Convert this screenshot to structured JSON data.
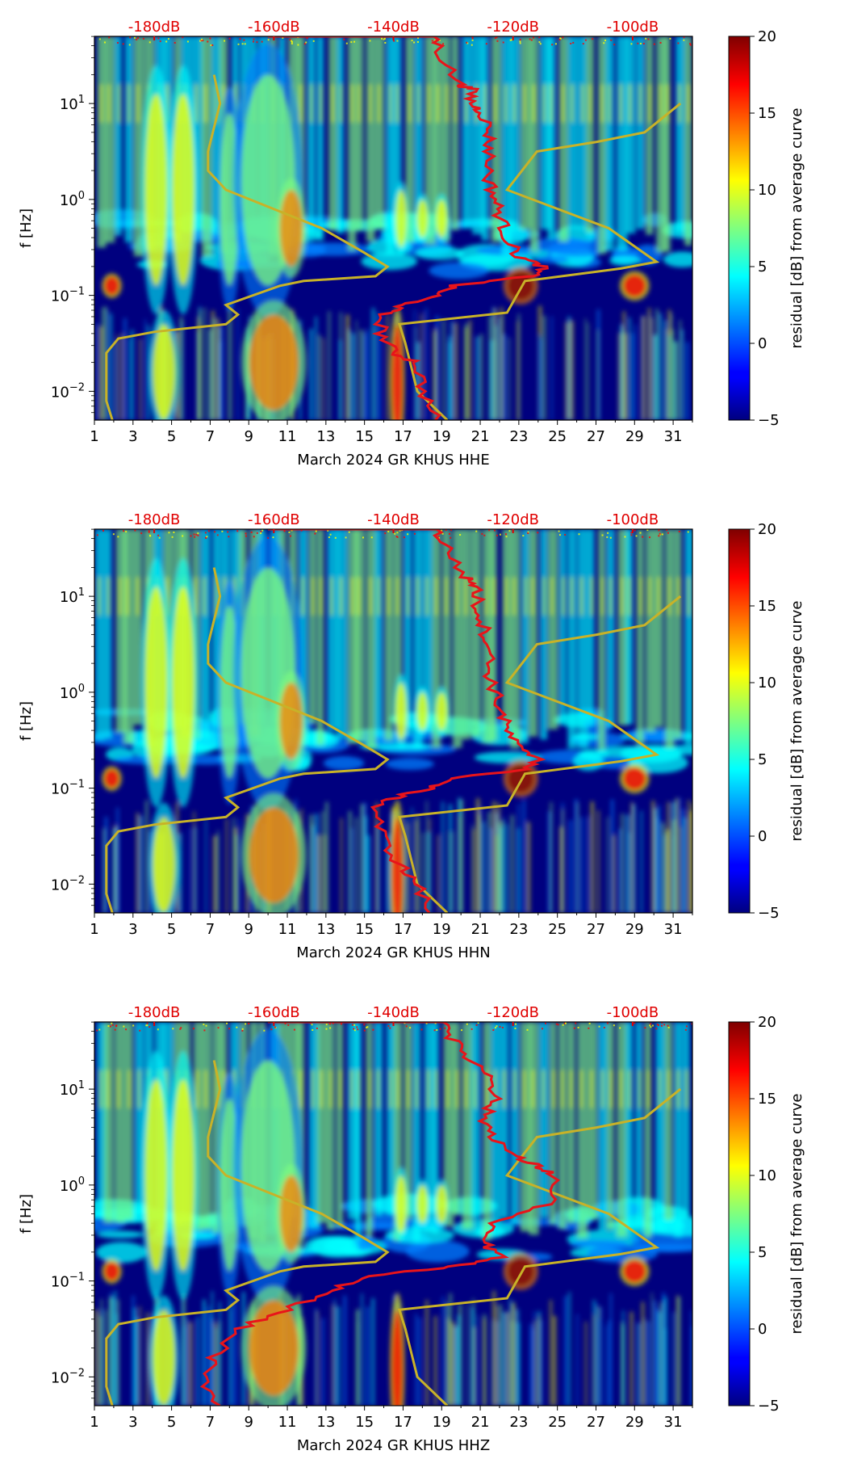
{
  "colors": {
    "noise_curve": "#e8141a",
    "model_curve": "#c8b228",
    "db_label": "#e00000",
    "background_field": "#00007f"
  },
  "chart_data": [
    {
      "type": "heatmap",
      "channel": "HHE",
      "xlabel": "March 2024 GR KHUS  HHE",
      "ylabel": "f [Hz]",
      "colorbar_label": "residual [dB] from average curve",
      "colorbar_ticks": [
        "20",
        "15",
        "10",
        "5",
        "0",
        "−5"
      ],
      "colorbar_range": [
        -5,
        20
      ],
      "x_ticks": [
        "1",
        "3",
        "5",
        "7",
        "9",
        "11",
        "13",
        "15",
        "17",
        "19",
        "21",
        "23",
        "25",
        "27",
        "29",
        "31"
      ],
      "xlim": [
        1,
        32
      ],
      "y_ticks": [
        {
          "base": "10",
          "exp": "1"
        },
        {
          "base": "10",
          "exp": "0"
        },
        {
          "base": "10",
          "exp": "−1"
        },
        {
          "base": "10",
          "exp": "−2"
        }
      ],
      "ylim_log10": [
        -2.3,
        1.7
      ],
      "db_axis_labels": [
        "-180dB",
        "-160dB",
        "-140dB",
        "-120dB",
        "-100dB"
      ],
      "db_range": [
        -190,
        -90
      ],
      "noise_curve": [
        [
          -161,
          1.7
        ],
        [
          -133,
          1.7
        ],
        [
          -132,
          1.5
        ],
        [
          -129,
          1.2
        ],
        [
          -127,
          1.15
        ],
        [
          -127,
          1.0
        ],
        [
          -125,
          0.9
        ],
        [
          -124,
          0.7
        ],
        [
          -124,
          0.5
        ],
        [
          -124,
          0.2
        ],
        [
          -123,
          0.0
        ],
        [
          -122,
          -0.2
        ],
        [
          -121,
          -0.4
        ],
        [
          -119,
          -0.6
        ],
        [
          -115,
          -0.7
        ],
        [
          -117,
          -0.8
        ],
        [
          -130,
          -0.9
        ],
        [
          -133,
          -1.0
        ],
        [
          -138,
          -1.1
        ],
        [
          -142,
          -1.2
        ],
        [
          -142,
          -1.4
        ],
        [
          -140,
          -1.6
        ],
        [
          -136,
          -1.7
        ],
        [
          -135,
          -2.0
        ],
        [
          -133,
          -2.3
        ]
      ],
      "model_curve": [
        [
          -187,
          -2.3
        ],
        [
          -188,
          -2.1
        ],
        [
          -188,
          -1.9
        ],
        [
          -188,
          -1.6
        ],
        [
          -186,
          -1.45
        ],
        [
          -180,
          -1.38
        ],
        [
          -168,
          -1.3
        ],
        [
          -166,
          -1.2
        ],
        [
          -168,
          -1.1
        ],
        [
          -159,
          -0.9
        ],
        [
          -155,
          -0.85
        ],
        [
          -143,
          -0.8
        ],
        [
          -141,
          -0.7
        ],
        [
          -145,
          -0.55
        ],
        [
          -152,
          -0.3
        ],
        [
          -168,
          0.1
        ],
        [
          -171,
          0.3
        ],
        [
          -171,
          0.5
        ],
        [
          -169,
          1.0
        ],
        [
          -170,
          1.3
        ],
        [
          -131,
          -2.3
        ],
        [
          -136,
          -2.0
        ],
        [
          -138,
          -1.5
        ],
        [
          -139,
          -1.3
        ],
        [
          -121,
          -1.18
        ],
        [
          -118,
          -0.85
        ],
        [
          -102,
          -0.72
        ],
        [
          -96,
          -0.65
        ],
        [
          -104,
          -0.3
        ],
        [
          -121,
          0.1
        ],
        [
          -116,
          0.5
        ],
        [
          -106,
          0.6
        ],
        [
          -98,
          0.7
        ],
        [
          -92,
          1.0
        ]
      ]
    },
    {
      "type": "heatmap",
      "channel": "HHN",
      "xlabel": "March 2024 GR KHUS  HHN",
      "ylabel": "f [Hz]",
      "colorbar_label": "residual [dB] from average curve",
      "colorbar_ticks": [
        "20",
        "15",
        "10",
        "5",
        "0",
        "−5"
      ],
      "colorbar_range": [
        -5,
        20
      ],
      "x_ticks": [
        "1",
        "3",
        "5",
        "7",
        "9",
        "11",
        "13",
        "15",
        "17",
        "19",
        "21",
        "23",
        "25",
        "27",
        "29",
        "31"
      ],
      "xlim": [
        1,
        32
      ],
      "y_ticks": [
        {
          "base": "10",
          "exp": "1"
        },
        {
          "base": "10",
          "exp": "0"
        },
        {
          "base": "10",
          "exp": "−1"
        },
        {
          "base": "10",
          "exp": "−2"
        }
      ],
      "ylim_log10": [
        -2.3,
        1.7
      ],
      "db_axis_labels": [
        "-180dB",
        "-160dB",
        "-140dB",
        "-120dB",
        "-100dB"
      ],
      "db_range": [
        -190,
        -90
      ],
      "noise_curve": [
        [
          -161,
          1.7
        ],
        [
          -133,
          1.7
        ],
        [
          -131,
          1.5
        ],
        [
          -128,
          1.2
        ],
        [
          -126,
          1.1
        ],
        [
          -126,
          0.9
        ],
        [
          -125,
          0.7
        ],
        [
          -124,
          0.5
        ],
        [
          -124,
          0.2
        ],
        [
          -123,
          0.0
        ],
        [
          -122,
          -0.2
        ],
        [
          -121,
          -0.4
        ],
        [
          -119,
          -0.6
        ],
        [
          -115,
          -0.7
        ],
        [
          -118,
          -0.8
        ],
        [
          -130,
          -0.9
        ],
        [
          -134,
          -1.0
        ],
        [
          -140,
          -1.1
        ],
        [
          -143,
          -1.2
        ],
        [
          -142,
          -1.5
        ],
        [
          -139,
          -1.8
        ],
        [
          -136,
          -2.0
        ],
        [
          -134,
          -2.3
        ]
      ],
      "model_curve": [
        [
          -187,
          -2.3
        ],
        [
          -188,
          -2.1
        ],
        [
          -188,
          -1.9
        ],
        [
          -188,
          -1.6
        ],
        [
          -186,
          -1.45
        ],
        [
          -180,
          -1.38
        ],
        [
          -168,
          -1.3
        ],
        [
          -166,
          -1.2
        ],
        [
          -168,
          -1.1
        ],
        [
          -159,
          -0.9
        ],
        [
          -155,
          -0.85
        ],
        [
          -143,
          -0.8
        ],
        [
          -141,
          -0.7
        ],
        [
          -145,
          -0.55
        ],
        [
          -152,
          -0.3
        ],
        [
          -168,
          0.1
        ],
        [
          -171,
          0.3
        ],
        [
          -171,
          0.5
        ],
        [
          -169,
          1.0
        ],
        [
          -170,
          1.3
        ],
        [
          -131,
          -2.3
        ],
        [
          -136,
          -2.0
        ],
        [
          -138,
          -1.5
        ],
        [
          -139,
          -1.3
        ],
        [
          -121,
          -1.18
        ],
        [
          -118,
          -0.85
        ],
        [
          -102,
          -0.72
        ],
        [
          -96,
          -0.65
        ],
        [
          -104,
          -0.3
        ],
        [
          -121,
          0.1
        ],
        [
          -116,
          0.5
        ],
        [
          -106,
          0.6
        ],
        [
          -98,
          0.7
        ],
        [
          -92,
          1.0
        ]
      ]
    },
    {
      "type": "heatmap",
      "channel": "HHZ",
      "xlabel": "March 2024 GR KHUS  HHZ",
      "ylabel": "f [Hz]",
      "colorbar_label": "residual [dB] from average curve",
      "colorbar_ticks": [
        "20",
        "15",
        "10",
        "5",
        "0",
        "−5"
      ],
      "colorbar_range": [
        -5,
        20
      ],
      "x_ticks": [
        "1",
        "3",
        "5",
        "7",
        "9",
        "11",
        "13",
        "15",
        "17",
        "19",
        "21",
        "23",
        "25",
        "27",
        "29",
        "31"
      ],
      "xlim": [
        1,
        32
      ],
      "y_ticks": [
        {
          "base": "10",
          "exp": "1"
        },
        {
          "base": "10",
          "exp": "0"
        },
        {
          "base": "10",
          "exp": "−1"
        },
        {
          "base": "10",
          "exp": "−2"
        }
      ],
      "ylim_log10": [
        -2.3,
        1.7
      ],
      "db_axis_labels": [
        "-180dB",
        "-160dB",
        "-140dB",
        "-120dB",
        "-100dB"
      ],
      "db_range": [
        -190,
        -90
      ],
      "noise_curve": [
        [
          -161,
          1.7
        ],
        [
          -131,
          1.7
        ],
        [
          -130,
          1.5
        ],
        [
          -127,
          1.3
        ],
        [
          -123,
          1.1
        ],
        [
          -123,
          0.9
        ],
        [
          -125,
          0.7
        ],
        [
          -123,
          0.5
        ],
        [
          -120,
          0.3
        ],
        [
          -116,
          0.2
        ],
        [
          -113,
          0.1
        ],
        [
          -114,
          -0.2
        ],
        [
          -124,
          -0.4
        ],
        [
          -125,
          -0.6
        ],
        [
          -122,
          -0.75
        ],
        [
          -130,
          -0.85
        ],
        [
          -145,
          -0.95
        ],
        [
          -150,
          -1.1
        ],
        [
          -158,
          -1.3
        ],
        [
          -166,
          -1.5
        ],
        [
          -170,
          -1.8
        ],
        [
          -172,
          -2.0
        ],
        [
          -169,
          -2.3
        ]
      ],
      "model_curve": [
        [
          -187,
          -2.3
        ],
        [
          -188,
          -2.1
        ],
        [
          -188,
          -1.9
        ],
        [
          -188,
          -1.6
        ],
        [
          -186,
          -1.45
        ],
        [
          -180,
          -1.38
        ],
        [
          -168,
          -1.3
        ],
        [
          -166,
          -1.2
        ],
        [
          -168,
          -1.1
        ],
        [
          -159,
          -0.9
        ],
        [
          -155,
          -0.85
        ],
        [
          -143,
          -0.8
        ],
        [
          -141,
          -0.7
        ],
        [
          -145,
          -0.55
        ],
        [
          -152,
          -0.3
        ],
        [
          -168,
          0.1
        ],
        [
          -171,
          0.3
        ],
        [
          -171,
          0.5
        ],
        [
          -169,
          1.0
        ],
        [
          -170,
          1.3
        ],
        [
          -131,
          -2.3
        ],
        [
          -136,
          -2.0
        ],
        [
          -138,
          -1.5
        ],
        [
          -139,
          -1.3
        ],
        [
          -121,
          -1.18
        ],
        [
          -118,
          -0.85
        ],
        [
          -102,
          -0.72
        ],
        [
          -96,
          -0.65
        ],
        [
          -104,
          -0.3
        ],
        [
          -121,
          0.1
        ],
        [
          -116,
          0.5
        ],
        [
          -106,
          0.6
        ],
        [
          -98,
          0.7
        ],
        [
          -92,
          1.0
        ]
      ]
    }
  ]
}
